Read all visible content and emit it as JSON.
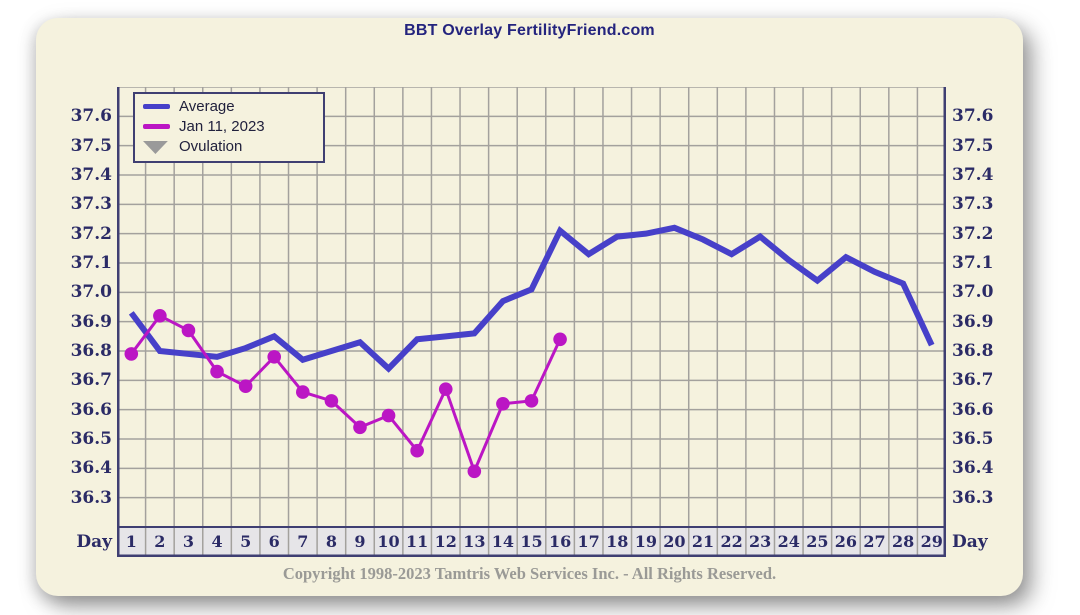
{
  "title": "BBT Overlay FertilityFriend.com",
  "copyright": "Copyright 1998-2023 Tamtris Web Services Inc. - All Rights Reserved.",
  "day_axis_label": "Day",
  "legend": {
    "items": [
      {
        "label": "Average",
        "swatch": "line",
        "color": "#4740c9"
      },
      {
        "label": "Jan 11, 2023",
        "swatch": "line",
        "color": "#bb16c4"
      },
      {
        "label": "Ovulation",
        "swatch": "triangle-down",
        "color": "#9a9a9a"
      }
    ]
  },
  "chart_data": {
    "type": "line",
    "x": [
      1,
      2,
      3,
      4,
      5,
      6,
      7,
      8,
      9,
      10,
      11,
      12,
      13,
      14,
      15,
      16,
      17,
      18,
      19,
      20,
      21,
      22,
      23,
      24,
      25,
      26,
      27,
      28,
      29
    ],
    "series": [
      {
        "name": "Average",
        "color": "#4740c9",
        "width": 6,
        "markers": false,
        "values": [
          36.93,
          36.8,
          36.79,
          36.78,
          36.81,
          36.85,
          36.77,
          36.8,
          36.83,
          36.74,
          36.84,
          36.85,
          36.86,
          36.97,
          37.01,
          37.21,
          37.13,
          37.19,
          37.2,
          37.22,
          37.18,
          37.13,
          37.19,
          37.11,
          37.04,
          37.12,
          37.07,
          37.03,
          36.82
        ]
      },
      {
        "name": "Jan 11, 2023",
        "color": "#bb16c4",
        "width": 3,
        "markers": true,
        "values": [
          36.79,
          36.92,
          36.87,
          36.73,
          36.68,
          36.78,
          36.66,
          36.63,
          36.54,
          36.58,
          36.46,
          36.67,
          36.39,
          36.62,
          36.63,
          36.84,
          null,
          null,
          null,
          null,
          null,
          null,
          null,
          null,
          null,
          null,
          null,
          null,
          null
        ]
      }
    ],
    "ylim": [
      36.2,
      37.7
    ],
    "yticks": [
      37.6,
      37.5,
      37.4,
      37.3,
      37.2,
      37.1,
      37.0,
      36.9,
      36.8,
      36.7,
      36.6,
      36.5,
      36.4,
      36.3
    ],
    "ytick_step": 0.1,
    "grid": true,
    "legend_position": "top-left",
    "colors": {
      "grid": "#a3a19d",
      "border": "#3f3f72",
      "day_row_bg": "#e6e5e8",
      "background": "#f5f2de"
    }
  }
}
